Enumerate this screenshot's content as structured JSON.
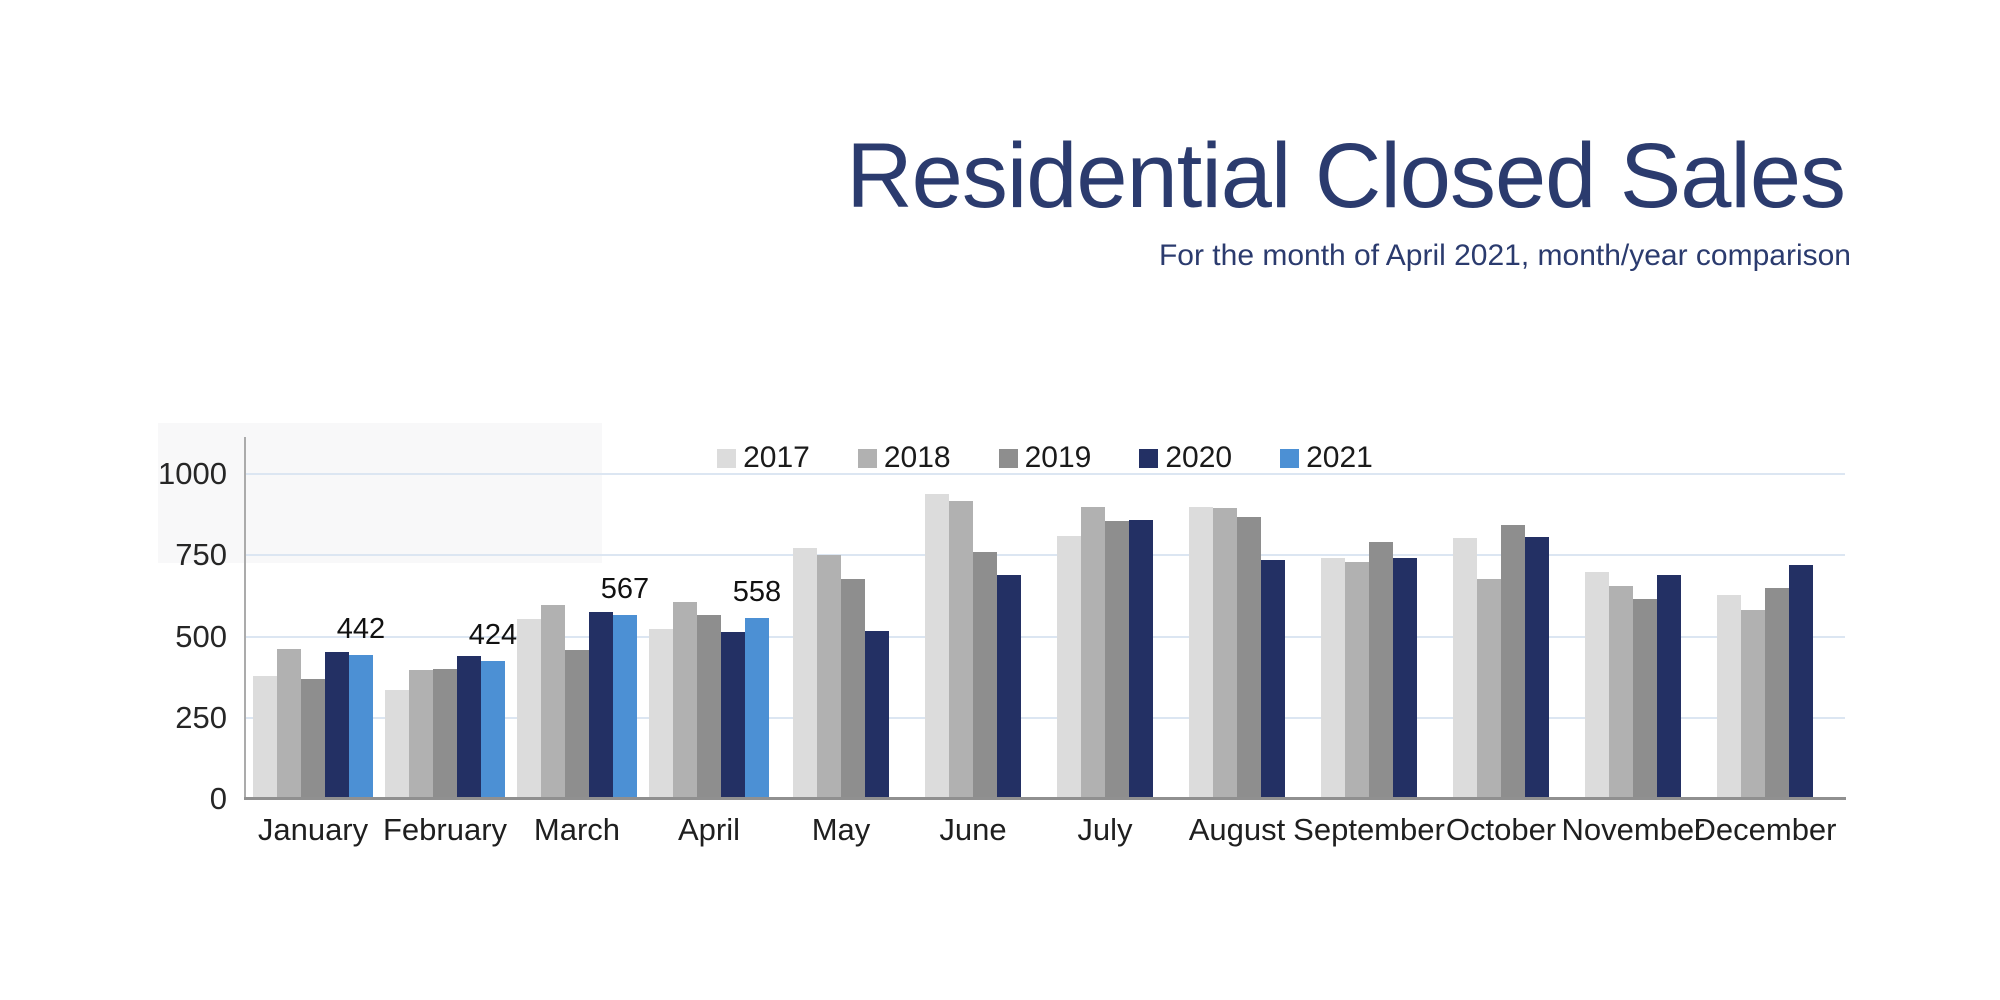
{
  "header": {
    "title": "Residential Closed Sales",
    "subtitle": "For the month of April 2021, month/year comparison",
    "title_color": "#2b3b6e"
  },
  "chart_data": {
    "type": "bar",
    "title": "Residential Closed Sales",
    "subtitle": "For the month of April 2021, month/year comparison",
    "categories": [
      "January",
      "February",
      "March",
      "April",
      "May",
      "June",
      "July",
      "August",
      "September",
      "October",
      "November",
      "December"
    ],
    "series": [
      {
        "name": "2017",
        "color": "#dcdcdc",
        "values": [
          378,
          336,
          553,
          522,
          774,
          938,
          808,
          898,
          741,
          803,
          698,
          627
        ]
      },
      {
        "name": "2018",
        "color": "#b1b1b1",
        "values": [
          462,
          398,
          597,
          607,
          750,
          918,
          898,
          896,
          730,
          677,
          656,
          583
        ]
      },
      {
        "name": "2019",
        "color": "#8e8e8e",
        "values": [
          368,
          400,
          460,
          566,
          678,
          761,
          856,
          867,
          790,
          843,
          614,
          650
        ]
      },
      {
        "name": "2020",
        "color": "#233064",
        "values": [
          452,
          440,
          576,
          514,
          517,
          690,
          858,
          735,
          741,
          806,
          689,
          719
        ]
      },
      {
        "name": "2021",
        "color": "#4c90d4",
        "values": [
          442,
          424,
          567,
          558,
          null,
          null,
          null,
          null,
          null,
          null,
          null,
          null
        ]
      }
    ],
    "data_labels": [
      {
        "category": "January",
        "series": "2021",
        "text": "442"
      },
      {
        "category": "February",
        "series": "2021",
        "text": "424"
      },
      {
        "category": "March",
        "series": "2021",
        "text": "567"
      },
      {
        "category": "April",
        "series": "2021",
        "text": "558"
      }
    ],
    "yticks": [
      "0",
      "250",
      "500",
      "750",
      "1000"
    ],
    "ylim": [
      0,
      1114
    ],
    "grid": true,
    "gridline_color": "#dce6f2",
    "axis_color": "#9a9a9a",
    "legend_position": "top-center"
  }
}
